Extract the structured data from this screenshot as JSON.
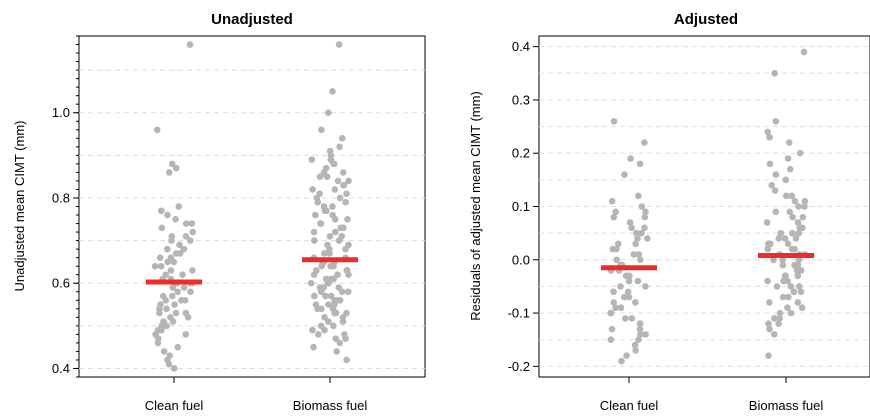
{
  "chart_data": [
    {
      "type": "scatter",
      "title": "Unadjusted",
      "ylabel": "Unadjusted mean CIMT (mm)",
      "xlabel": "",
      "categories": [
        "Clean fuel",
        "Biomass fuel"
      ],
      "ylim": [
        0.38,
        1.18
      ],
      "yticks": [
        0.4,
        0.6,
        0.8,
        1.0
      ],
      "ytick_labels": [
        "0.4",
        "0.6",
        "0.8",
        "1.0"
      ],
      "minor_ytick_step": 0.02,
      "grid": true,
      "point_color": "#b5b5b5",
      "mean_color": "#ee2a2a",
      "series": [
        {
          "category": "Clean fuel",
          "mean": 0.603,
          "values": [
            1.16,
            0.96,
            0.87,
            0.86,
            0.88,
            0.78,
            0.77,
            0.76,
            0.75,
            0.74,
            0.74,
            0.73,
            0.72,
            0.71,
            0.71,
            0.7,
            0.7,
            0.69,
            0.68,
            0.68,
            0.67,
            0.67,
            0.66,
            0.66,
            0.65,
            0.65,
            0.64,
            0.64,
            0.63,
            0.63,
            0.62,
            0.62,
            0.61,
            0.61,
            0.6,
            0.6,
            0.6,
            0.59,
            0.59,
            0.58,
            0.58,
            0.57,
            0.57,
            0.56,
            0.56,
            0.56,
            0.55,
            0.55,
            0.54,
            0.54,
            0.53,
            0.53,
            0.53,
            0.52,
            0.52,
            0.51,
            0.51,
            0.5,
            0.5,
            0.49,
            0.49,
            0.48,
            0.48,
            0.47,
            0.46,
            0.45,
            0.44,
            0.43,
            0.42,
            0.41,
            0.4
          ]
        },
        {
          "category": "Biomass fuel",
          "mean": 0.655,
          "values": [
            1.16,
            1.05,
            1.0,
            0.96,
            0.94,
            0.92,
            0.91,
            0.9,
            0.89,
            0.89,
            0.88,
            0.88,
            0.87,
            0.86,
            0.86,
            0.85,
            0.85,
            0.84,
            0.84,
            0.83,
            0.83,
            0.82,
            0.82,
            0.81,
            0.81,
            0.8,
            0.8,
            0.79,
            0.79,
            0.78,
            0.78,
            0.77,
            0.77,
            0.76,
            0.76,
            0.75,
            0.75,
            0.74,
            0.74,
            0.73,
            0.73,
            0.72,
            0.72,
            0.71,
            0.71,
            0.7,
            0.7,
            0.69,
            0.69,
            0.68,
            0.68,
            0.67,
            0.67,
            0.66,
            0.66,
            0.65,
            0.65,
            0.65,
            0.64,
            0.64,
            0.64,
            0.63,
            0.63,
            0.63,
            0.62,
            0.62,
            0.62,
            0.61,
            0.61,
            0.61,
            0.6,
            0.6,
            0.6,
            0.59,
            0.59,
            0.59,
            0.58,
            0.58,
            0.58,
            0.57,
            0.57,
            0.57,
            0.56,
            0.56,
            0.56,
            0.55,
            0.55,
            0.55,
            0.54,
            0.54,
            0.54,
            0.53,
            0.53,
            0.53,
            0.52,
            0.52,
            0.51,
            0.51,
            0.5,
            0.5,
            0.49,
            0.49,
            0.48,
            0.48,
            0.47,
            0.47,
            0.46,
            0.45,
            0.44,
            0.42
          ]
        }
      ]
    },
    {
      "type": "scatter",
      "title": "Adjusted",
      "ylabel": "Residuals of adjusted mean CIMT (mm)",
      "xlabel": "",
      "categories": [
        "Clean fuel",
        "Biomass fuel"
      ],
      "ylim": [
        -0.22,
        0.42
      ],
      "yticks": [
        -0.2,
        -0.1,
        0.0,
        0.1,
        0.2,
        0.3,
        0.4
      ],
      "ytick_labels": [
        "-0.2",
        "-0.1",
        "0.0",
        "0.1",
        "0.2",
        "0.3",
        "0.4"
      ],
      "grid": true,
      "point_color": "#b5b5b5",
      "mean_color": "#ee2a2a",
      "series": [
        {
          "category": "Clean fuel",
          "mean": -0.015,
          "values": [
            0.26,
            0.22,
            0.19,
            0.18,
            0.16,
            0.12,
            0.11,
            0.1,
            0.09,
            0.09,
            0.08,
            0.08,
            0.07,
            0.06,
            0.06,
            0.05,
            0.05,
            0.04,
            0.04,
            0.03,
            0.03,
            0.02,
            0.02,
            0.01,
            0.01,
            0.0,
            0.0,
            -0.01,
            -0.01,
            -0.02,
            -0.02,
            -0.03,
            -0.03,
            -0.04,
            -0.04,
            -0.05,
            -0.05,
            -0.06,
            -0.06,
            -0.07,
            -0.07,
            -0.08,
            -0.08,
            -0.09,
            -0.09,
            -0.1,
            -0.1,
            -0.11,
            -0.11,
            -0.12,
            -0.12,
            -0.13,
            -0.13,
            -0.14,
            -0.14,
            -0.15,
            -0.15,
            -0.16,
            -0.17,
            -0.18,
            -0.19
          ]
        },
        {
          "category": "Biomass fuel",
          "mean": 0.008,
          "values": [
            0.39,
            0.35,
            0.26,
            0.24,
            0.23,
            0.22,
            0.2,
            0.19,
            0.18,
            0.17,
            0.16,
            0.15,
            0.14,
            0.13,
            0.12,
            0.12,
            0.11,
            0.11,
            0.1,
            0.1,
            0.09,
            0.09,
            0.08,
            0.08,
            0.07,
            0.07,
            0.06,
            0.06,
            0.05,
            0.05,
            0.05,
            0.04,
            0.04,
            0.04,
            0.03,
            0.03,
            0.03,
            0.02,
            0.02,
            0.02,
            0.01,
            0.01,
            0.01,
            0.0,
            0.0,
            0.0,
            -0.01,
            -0.01,
            -0.01,
            -0.02,
            -0.02,
            -0.02,
            -0.03,
            -0.03,
            -0.03,
            -0.04,
            -0.04,
            -0.04,
            -0.05,
            -0.05,
            -0.05,
            -0.06,
            -0.06,
            -0.07,
            -0.07,
            -0.08,
            -0.08,
            -0.09,
            -0.09,
            -0.1,
            -0.1,
            -0.11,
            -0.11,
            -0.12,
            -0.12,
            -0.13,
            -0.14,
            -0.18
          ]
        }
      ]
    }
  ]
}
